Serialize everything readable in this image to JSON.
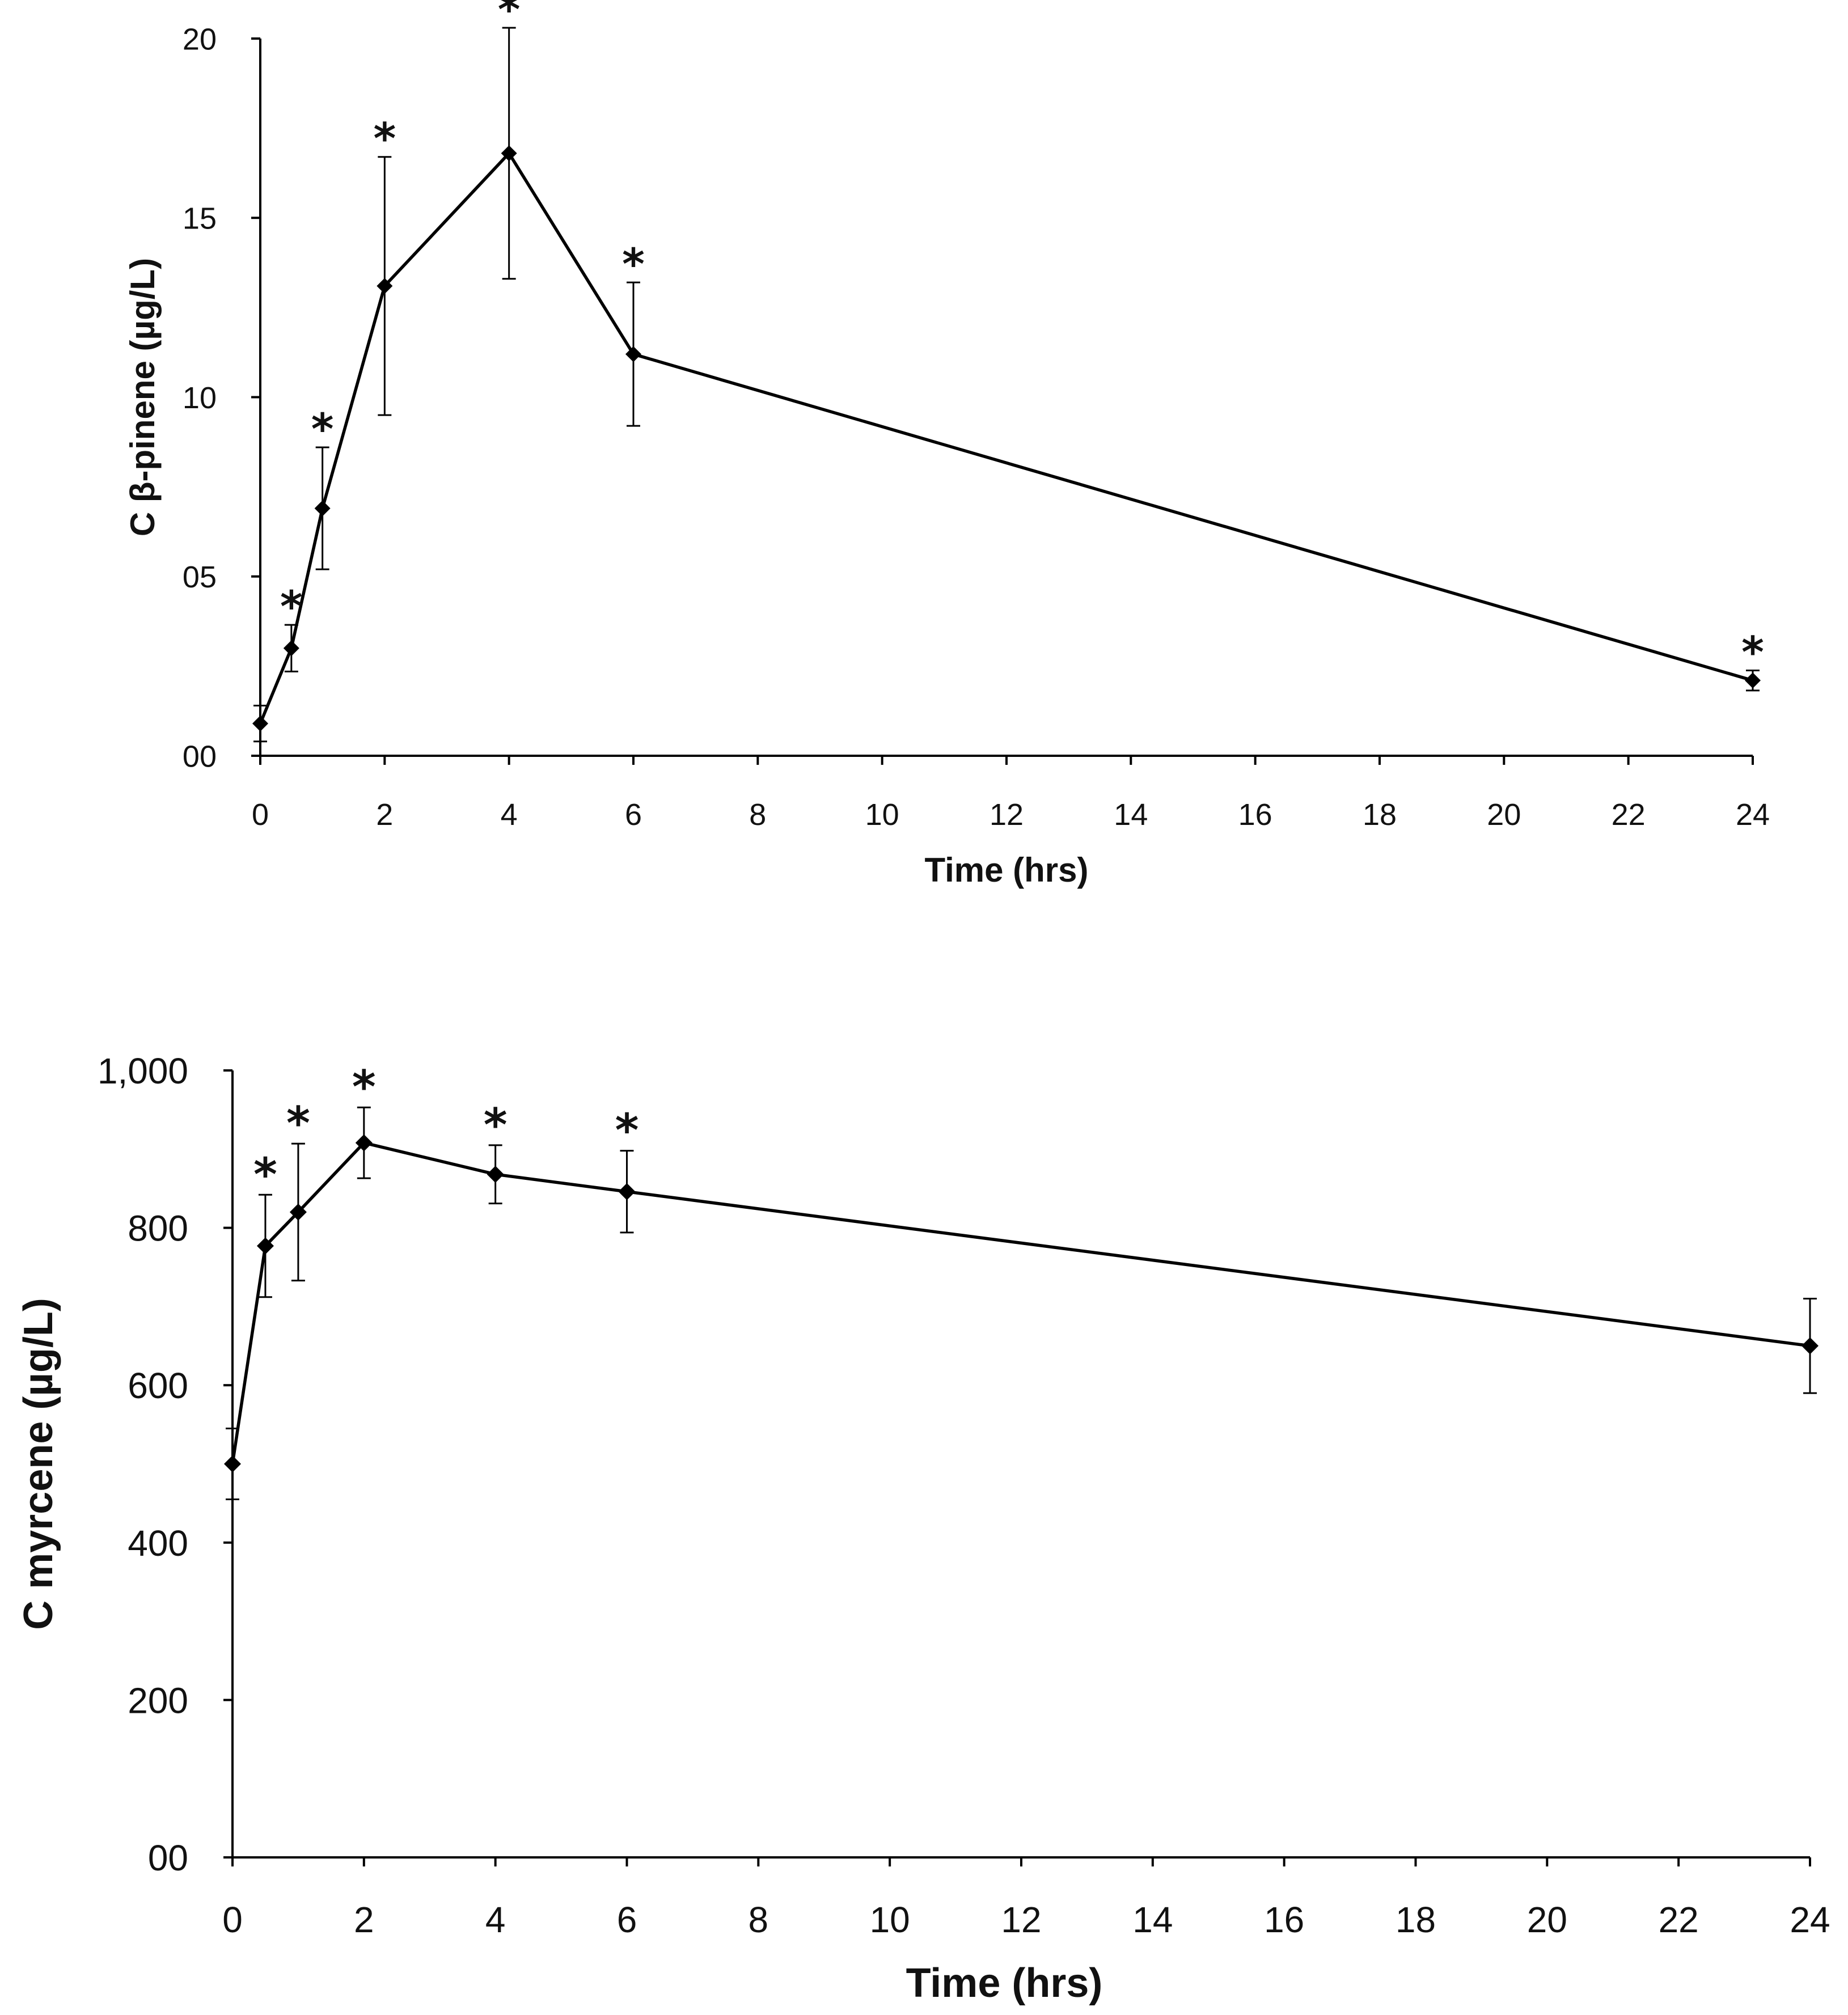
{
  "chart_data": [
    {
      "type": "line",
      "xlabel": "Time (hrs)",
      "ylabel": "C β-pinene (µg/L)",
      "xlim": [
        0,
        24
      ],
      "ylim": [
        0,
        20
      ],
      "grid": false,
      "x_tick_labels": [
        "0",
        "2",
        "4",
        "6",
        "8",
        "10",
        "12",
        "14",
        "16",
        "18",
        "20",
        "22",
        "24"
      ],
      "y_tick_labels": [
        "00",
        "05",
        "10",
        "15",
        "20"
      ],
      "series": [
        {
          "name": "β-pinene",
          "x": [
            0,
            0.5,
            1,
            2,
            4,
            6,
            24
          ],
          "values": [
            0.9,
            3.0,
            6.9,
            13.1,
            16.8,
            11.2,
            2.1
          ],
          "error": [
            0.5,
            0.65,
            1.7,
            3.6,
            3.5,
            2.0,
            0.28
          ],
          "significant": [
            false,
            true,
            true,
            true,
            true,
            true,
            true
          ]
        }
      ],
      "annotation": "*"
    },
    {
      "type": "line",
      "xlabel": "Time (hrs)",
      "ylabel": "C myrcene (µg/L)",
      "xlim": [
        0,
        24
      ],
      "ylim": [
        0,
        1000
      ],
      "grid": false,
      "x_tick_labels": [
        "0",
        "2",
        "4",
        "6",
        "8",
        "10",
        "12",
        "14",
        "16",
        "18",
        "20",
        "22",
        "24"
      ],
      "y_tick_labels": [
        "00",
        "200",
        "400",
        "600",
        "800",
        "1,000"
      ],
      "series": [
        {
          "name": "myrcene",
          "x": [
            0,
            0.5,
            1,
            2,
            4,
            6,
            24
          ],
          "values": [
            500,
            777,
            820,
            908,
            868,
            846,
            650
          ],
          "error": [
            45,
            65,
            87,
            45,
            37,
            52,
            60
          ],
          "significant": [
            false,
            true,
            true,
            true,
            true,
            true,
            false
          ]
        }
      ],
      "annotation": "*"
    }
  ]
}
